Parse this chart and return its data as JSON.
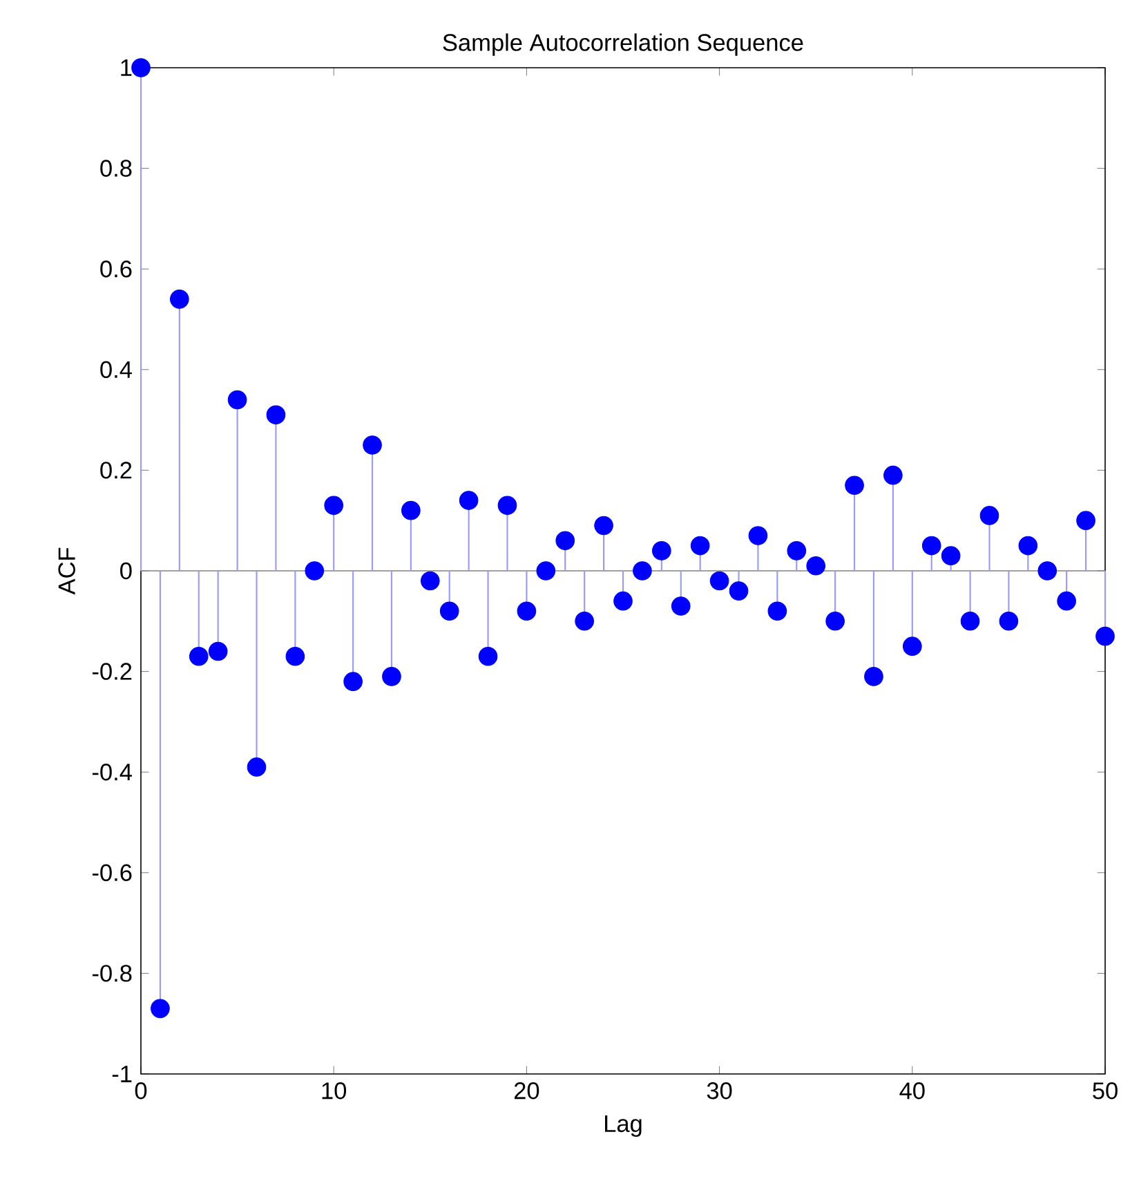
{
  "chart_data": {
    "type": "lollipop",
    "title": "Sample Autocorrelation Sequence",
    "xlabel": "Lag",
    "ylabel": "ACF",
    "x": [
      0,
      1,
      2,
      3,
      4,
      5,
      6,
      7,
      8,
      9,
      10,
      11,
      12,
      13,
      14,
      15,
      16,
      17,
      18,
      19,
      20,
      21,
      22,
      23,
      24,
      25,
      26,
      27,
      28,
      29,
      30,
      31,
      32,
      33,
      34,
      35,
      36,
      37,
      38,
      39,
      40,
      41,
      42,
      43,
      44,
      45,
      46,
      47,
      48,
      49,
      50
    ],
    "series": [
      {
        "color": "#0000ff",
        "values": [
          1,
          -0.87,
          0.54,
          -0.17,
          -0.16,
          0.34,
          -0.39,
          0.31,
          -0.17,
          0,
          0.13,
          -0.22,
          0.25,
          -0.21,
          0.12,
          -0.02,
          -0.08,
          0.14,
          -0.17,
          0.13,
          -0.08,
          0,
          0.06,
          -0.1,
          0.09,
          -0.06,
          0,
          0.04,
          -0.07,
          0.05,
          -0.02,
          -0.04,
          0.07,
          -0.08,
          0.04,
          0.01,
          -0.1,
          0.17,
          -0.21,
          0.19,
          -0.15,
          0.05,
          0.03,
          -0.1,
          0.11,
          -0.1,
          0.05,
          0,
          -0.06,
          0.1,
          -0.13
        ]
      }
    ],
    "xlim": [
      0,
      50
    ],
    "xticks": [
      0,
      10,
      20,
      30,
      40,
      50
    ],
    "ylim": [
      -1,
      1
    ],
    "yticks": [
      -1,
      -0.8,
      -0.6,
      -0.4,
      -0.2,
      0,
      0.2,
      0.4,
      0.6,
      0.8,
      1
    ],
    "ref_lines": [
      {
        "axis": "y",
        "value": 0,
        "color": "#808080"
      }
    ],
    "marker": "circle"
  }
}
